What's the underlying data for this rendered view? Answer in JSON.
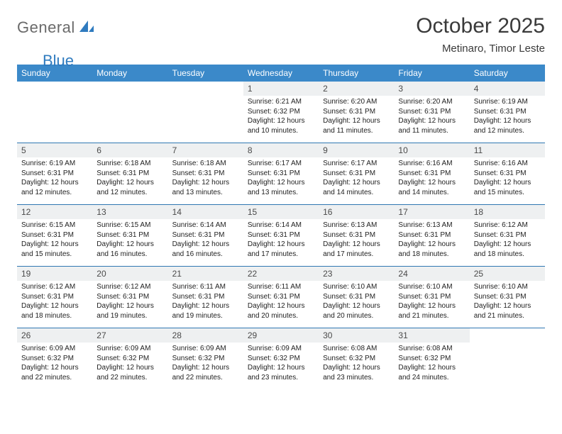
{
  "brand": {
    "text1": "General",
    "text2": "Blue",
    "text1_color": "#6a6a6a",
    "text2_color": "#2f7bbf",
    "shape_color": "#2f7bbf"
  },
  "header": {
    "title": "October 2025",
    "subtitle": "Metinaro, Timor Leste",
    "title_fontsize": 30,
    "subtitle_fontsize": 15
  },
  "calendar": {
    "type": "table",
    "header_bg": "#3b89c9",
    "header_text_color": "#ffffff",
    "daynum_bg": "#eef0f1",
    "border_color": "#2f77b2",
    "body_fontsize": 10,
    "daynum_fontsize": 12,
    "columns": [
      "Sunday",
      "Monday",
      "Tuesday",
      "Wednesday",
      "Thursday",
      "Friday",
      "Saturday"
    ],
    "weeks": [
      [
        {
          "day": "",
          "lines": []
        },
        {
          "day": "",
          "lines": []
        },
        {
          "day": "",
          "lines": []
        },
        {
          "day": "1",
          "lines": [
            "Sunrise: 6:21 AM",
            "Sunset: 6:32 PM",
            "Daylight: 12 hours and 10 minutes."
          ]
        },
        {
          "day": "2",
          "lines": [
            "Sunrise: 6:20 AM",
            "Sunset: 6:31 PM",
            "Daylight: 12 hours and 11 minutes."
          ]
        },
        {
          "day": "3",
          "lines": [
            "Sunrise: 6:20 AM",
            "Sunset: 6:31 PM",
            "Daylight: 12 hours and 11 minutes."
          ]
        },
        {
          "day": "4",
          "lines": [
            "Sunrise: 6:19 AM",
            "Sunset: 6:31 PM",
            "Daylight: 12 hours and 12 minutes."
          ]
        }
      ],
      [
        {
          "day": "5",
          "lines": [
            "Sunrise: 6:19 AM",
            "Sunset: 6:31 PM",
            "Daylight: 12 hours and 12 minutes."
          ]
        },
        {
          "day": "6",
          "lines": [
            "Sunrise: 6:18 AM",
            "Sunset: 6:31 PM",
            "Daylight: 12 hours and 12 minutes."
          ]
        },
        {
          "day": "7",
          "lines": [
            "Sunrise: 6:18 AM",
            "Sunset: 6:31 PM",
            "Daylight: 12 hours and 13 minutes."
          ]
        },
        {
          "day": "8",
          "lines": [
            "Sunrise: 6:17 AM",
            "Sunset: 6:31 PM",
            "Daylight: 12 hours and 13 minutes."
          ]
        },
        {
          "day": "9",
          "lines": [
            "Sunrise: 6:17 AM",
            "Sunset: 6:31 PM",
            "Daylight: 12 hours and 14 minutes."
          ]
        },
        {
          "day": "10",
          "lines": [
            "Sunrise: 6:16 AM",
            "Sunset: 6:31 PM",
            "Daylight: 12 hours and 14 minutes."
          ]
        },
        {
          "day": "11",
          "lines": [
            "Sunrise: 6:16 AM",
            "Sunset: 6:31 PM",
            "Daylight: 12 hours and 15 minutes."
          ]
        }
      ],
      [
        {
          "day": "12",
          "lines": [
            "Sunrise: 6:15 AM",
            "Sunset: 6:31 PM",
            "Daylight: 12 hours and 15 minutes."
          ]
        },
        {
          "day": "13",
          "lines": [
            "Sunrise: 6:15 AM",
            "Sunset: 6:31 PM",
            "Daylight: 12 hours and 16 minutes."
          ]
        },
        {
          "day": "14",
          "lines": [
            "Sunrise: 6:14 AM",
            "Sunset: 6:31 PM",
            "Daylight: 12 hours and 16 minutes."
          ]
        },
        {
          "day": "15",
          "lines": [
            "Sunrise: 6:14 AM",
            "Sunset: 6:31 PM",
            "Daylight: 12 hours and 17 minutes."
          ]
        },
        {
          "day": "16",
          "lines": [
            "Sunrise: 6:13 AM",
            "Sunset: 6:31 PM",
            "Daylight: 12 hours and 17 minutes."
          ]
        },
        {
          "day": "17",
          "lines": [
            "Sunrise: 6:13 AM",
            "Sunset: 6:31 PM",
            "Daylight: 12 hours and 18 minutes."
          ]
        },
        {
          "day": "18",
          "lines": [
            "Sunrise: 6:12 AM",
            "Sunset: 6:31 PM",
            "Daylight: 12 hours and 18 minutes."
          ]
        }
      ],
      [
        {
          "day": "19",
          "lines": [
            "Sunrise: 6:12 AM",
            "Sunset: 6:31 PM",
            "Daylight: 12 hours and 18 minutes."
          ]
        },
        {
          "day": "20",
          "lines": [
            "Sunrise: 6:12 AM",
            "Sunset: 6:31 PM",
            "Daylight: 12 hours and 19 minutes."
          ]
        },
        {
          "day": "21",
          "lines": [
            "Sunrise: 6:11 AM",
            "Sunset: 6:31 PM",
            "Daylight: 12 hours and 19 minutes."
          ]
        },
        {
          "day": "22",
          "lines": [
            "Sunrise: 6:11 AM",
            "Sunset: 6:31 PM",
            "Daylight: 12 hours and 20 minutes."
          ]
        },
        {
          "day": "23",
          "lines": [
            "Sunrise: 6:10 AM",
            "Sunset: 6:31 PM",
            "Daylight: 12 hours and 20 minutes."
          ]
        },
        {
          "day": "24",
          "lines": [
            "Sunrise: 6:10 AM",
            "Sunset: 6:31 PM",
            "Daylight: 12 hours and 21 minutes."
          ]
        },
        {
          "day": "25",
          "lines": [
            "Sunrise: 6:10 AM",
            "Sunset: 6:31 PM",
            "Daylight: 12 hours and 21 minutes."
          ]
        }
      ],
      [
        {
          "day": "26",
          "lines": [
            "Sunrise: 6:09 AM",
            "Sunset: 6:32 PM",
            "Daylight: 12 hours and 22 minutes."
          ]
        },
        {
          "day": "27",
          "lines": [
            "Sunrise: 6:09 AM",
            "Sunset: 6:32 PM",
            "Daylight: 12 hours and 22 minutes."
          ]
        },
        {
          "day": "28",
          "lines": [
            "Sunrise: 6:09 AM",
            "Sunset: 6:32 PM",
            "Daylight: 12 hours and 22 minutes."
          ]
        },
        {
          "day": "29",
          "lines": [
            "Sunrise: 6:09 AM",
            "Sunset: 6:32 PM",
            "Daylight: 12 hours and 23 minutes."
          ]
        },
        {
          "day": "30",
          "lines": [
            "Sunrise: 6:08 AM",
            "Sunset: 6:32 PM",
            "Daylight: 12 hours and 23 minutes."
          ]
        },
        {
          "day": "31",
          "lines": [
            "Sunrise: 6:08 AM",
            "Sunset: 6:32 PM",
            "Daylight: 12 hours and 24 minutes."
          ]
        },
        {
          "day": "",
          "lines": []
        }
      ]
    ]
  }
}
